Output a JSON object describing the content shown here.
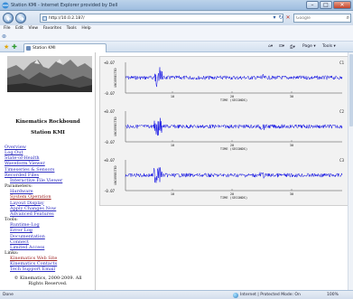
{
  "window": {
    "title": "Station KMI - Internet Explorer provided by Dell",
    "minimize": "–",
    "maximize": "□",
    "close": "✕"
  },
  "address_bar": {
    "url": "http://10.0.2.187/",
    "search_placeholder": "Google"
  },
  "menu": [
    "File",
    "Edit",
    "View",
    "Favorites",
    "Tools",
    "Help"
  ],
  "tab": {
    "label": "Station KMI"
  },
  "command_bar": {
    "page": "Page",
    "tools": "Tools"
  },
  "sidebar": {
    "title": "Kinematics Rockbound",
    "station": "Station KMI",
    "links": [
      {
        "label": "Overview",
        "style": "link"
      },
      {
        "label": "Log Out",
        "style": "link"
      },
      {
        "label": "State-of-Health",
        "style": "link"
      },
      {
        "label": "Waveform Viewer",
        "style": "link"
      },
      {
        "label": "Timeseries & Sensors",
        "style": "link"
      },
      {
        "label": "Recorded Files",
        "style": "link"
      },
      {
        "label": "Interactive File Viewer",
        "style": "sub"
      },
      {
        "label": "Parameters:",
        "style": "header"
      },
      {
        "label": "Hardware",
        "style": "sub"
      },
      {
        "label": "System Operation",
        "style": "subred"
      },
      {
        "label": "Layout Display",
        "style": "sub"
      },
      {
        "label": "Apply Changes Now",
        "style": "sub"
      },
      {
        "label": "Advanced Features",
        "style": "sub"
      },
      {
        "label": "Tools:",
        "style": "header"
      },
      {
        "label": "Runtime-Log",
        "style": "sub"
      },
      {
        "label": "Error Log",
        "style": "sub"
      },
      {
        "label": "Documentation",
        "style": "sub"
      },
      {
        "label": "Connect",
        "style": "sub"
      },
      {
        "label": "Limited Access",
        "style": "sub"
      },
      {
        "label": "Links:",
        "style": "header"
      },
      {
        "label": "Kinematics Web Site",
        "style": "subred"
      },
      {
        "label": "Kinematics Contacts",
        "style": "sub"
      },
      {
        "label": "Tech Support Email",
        "style": "sub"
      }
    ],
    "copyright_line1": "© Kinematics, 2000-2009. All",
    "copyright_line2": "Rights Reserved."
  },
  "chart_data": [
    {
      "type": "line",
      "channel": "C1",
      "ylabel": "UNCORRECTED",
      "xlabel": "TIME (SECONDS)",
      "y_top_label": "+0.07",
      "y_bottom_label": "-0.07",
      "xticks": [
        "10",
        "20",
        "30"
      ],
      "color": "#1414e6"
    },
    {
      "type": "line",
      "channel": "C2",
      "ylabel": "UNCORRECTED",
      "xlabel": "TIME (SECONDS)",
      "y_top_label": "+0.07",
      "y_bottom_label": "-0.07",
      "xticks": [
        "10",
        "20",
        "30"
      ],
      "color": "#1414e6"
    },
    {
      "type": "line",
      "channel": "C3",
      "ylabel": "UNCORRECTED",
      "xlabel": "TIME (SECONDS)",
      "y_top_label": "+0.07",
      "y_bottom_label": "-0.07",
      "xticks": [
        "10",
        "20",
        "30"
      ],
      "color": "#1414e6"
    }
  ],
  "status_bar": {
    "left": "Done",
    "zone": "Internet | Protected Mode: On",
    "zoom": "100%"
  }
}
